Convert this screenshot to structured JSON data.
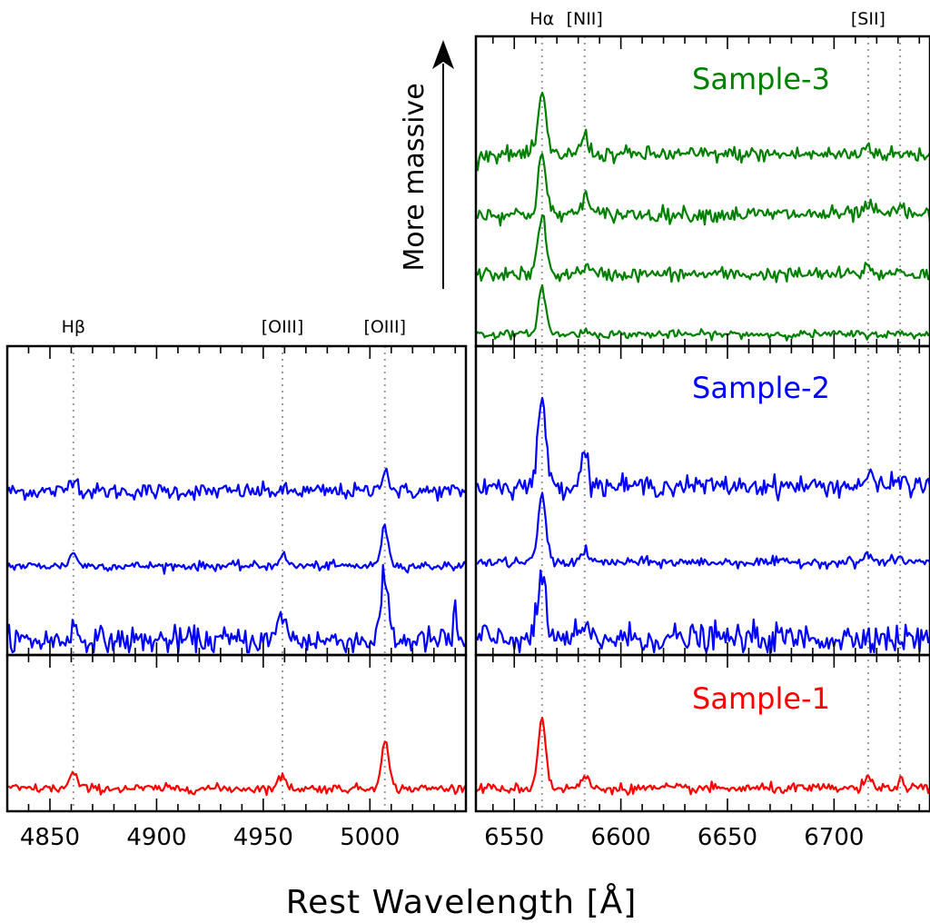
{
  "colors": {
    "sample1": "#ff0000",
    "sample2": "#0000ff",
    "sample3": "#008000",
    "emission_line_marker": "#9a9a9a"
  },
  "chart_data": {
    "type": "line",
    "xlabel": "Rest Wavelength [Å]",
    "annotation": "More massive",
    "panels": [
      {
        "id": "hbeta-oiii",
        "xlim": [
          4830,
          5045
        ],
        "xticks": [
          4850,
          4900,
          4950,
          5000
        ],
        "emission_lines": [
          {
            "label": "Hβ",
            "wavelength": 4861
          },
          {
            "label": "[OIII]",
            "wavelength": 4959
          },
          {
            "label": "[OIII]",
            "wavelength": 5007
          }
        ],
        "rows": [
          {
            "sample": "Sample-2",
            "spectra": [
              {
                "offset": 2.0,
                "noise": 0.09,
                "lines": [
                  [
                    4861,
                    0.3
                  ],
                  [
                    5007,
                    0.45
                  ]
                ]
              },
              {
                "offset": 1.0,
                "noise": 0.05,
                "lines": [
                  [
                    4861,
                    0.25
                  ],
                  [
                    4959,
                    0.22
                  ],
                  [
                    5007,
                    0.75
                  ]
                ]
              },
              {
                "offset": 0.0,
                "noise": 0.15,
                "lines": [
                  [
                    4861,
                    0.25
                  ],
                  [
                    4959,
                    0.55
                  ],
                  [
                    5007,
                    1.2
                  ],
                  [
                    5040,
                    0.8
                  ]
                ]
              }
            ]
          },
          {
            "sample": "Sample-1",
            "spectra": [
              {
                "offset": 0.0,
                "noise": 0.05,
                "lines": [
                  [
                    4861,
                    0.3
                  ],
                  [
                    4959,
                    0.25
                  ],
                  [
                    5007,
                    0.95
                  ]
                ]
              }
            ]
          }
        ]
      },
      {
        "id": "halpha-nii-sii",
        "xlim": [
          6532,
          6745
        ],
        "xticks": [
          6550,
          6600,
          6650,
          6700
        ],
        "emission_lines": [
          {
            "label": "Hα",
            "wavelength": 6563
          },
          {
            "label": "[NII]",
            "wavelength": 6583
          },
          {
            "label": "[SII]",
            "wavelength": 6716
          },
          {
            "label": "",
            "wavelength": 6731
          }
        ],
        "rows": [
          {
            "sample": "Sample-3",
            "spectra": [
              {
                "offset": 3.0,
                "noise": 0.08,
                "lines": [
                  [
                    6563,
                    1.1
                  ],
                  [
                    6583,
                    0.35
                  ],
                  [
                    6716,
                    0.18
                  ]
                ]
              },
              {
                "offset": 2.0,
                "noise": 0.08,
                "lines": [
                  [
                    6563,
                    1.1
                  ],
                  [
                    6583,
                    0.35
                  ],
                  [
                    6716,
                    0.18
                  ],
                  [
                    6731,
                    0.12
                  ]
                ]
              },
              {
                "offset": 1.0,
                "noise": 0.07,
                "lines": [
                  [
                    6563,
                    1.1
                  ],
                  [
                    6583,
                    0.15
                  ],
                  [
                    6716,
                    0.15
                  ],
                  [
                    6731,
                    0.08
                  ]
                ]
              },
              {
                "offset": 0.0,
                "noise": 0.04,
                "lines": [
                  [
                    6563,
                    0.85
                  ],
                  [
                    6583,
                    0.06
                  ]
                ]
              }
            ]
          },
          {
            "sample": "Sample-2",
            "spectra": [
              {
                "offset": 2.0,
                "noise": 0.1,
                "lines": [
                  [
                    6563,
                    1.65
                  ],
                  [
                    6583,
                    0.6
                  ],
                  [
                    6716,
                    0.2
                  ],
                  [
                    6731,
                    0.15
                  ]
                ]
              },
              {
                "offset": 1.0,
                "noise": 0.05,
                "lines": [
                  [
                    6563,
                    1.25
                  ],
                  [
                    6583,
                    0.2
                  ],
                  [
                    6716,
                    0.15
                  ],
                  [
                    6731,
                    0.08
                  ]
                ]
              },
              {
                "offset": 0.0,
                "noise": 0.15,
                "lines": [
                  [
                    6563,
                    1.15
                  ],
                  [
                    6583,
                    0.15
                  ],
                  [
                    6716,
                    0.12
                  ]
                ]
              }
            ]
          },
          {
            "sample": "Sample-1",
            "spectra": [
              {
                "offset": 0.0,
                "noise": 0.05,
                "lines": [
                  [
                    6563,
                    1.3
                  ],
                  [
                    6583,
                    0.22
                  ],
                  [
                    6716,
                    0.18
                  ],
                  [
                    6731,
                    0.13
                  ]
                ]
              }
            ]
          }
        ]
      }
    ]
  }
}
